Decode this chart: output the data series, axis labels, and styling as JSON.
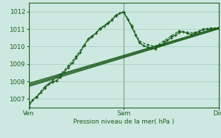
{
  "title": "Pression niveau de la mer( hPa )",
  "background_color": "#cde8e0",
  "grid_color": "#9ec8b8",
  "line_color": "#1a5c1a",
  "ylim": [
    1006.5,
    1012.5
  ],
  "yticks": [
    1007,
    1008,
    1009,
    1010,
    1011,
    1012
  ],
  "xtick_labels": [
    "Ven",
    "Sam",
    "Dim"
  ],
  "xtick_positions": [
    0,
    48,
    96
  ],
  "x_total": 96,
  "series_jagged1": [
    [
      0,
      1006.55
    ],
    [
      2,
      1006.95
    ],
    [
      4,
      1007.1
    ],
    [
      6,
      1007.35
    ],
    [
      8,
      1007.6
    ],
    [
      10,
      1007.85
    ],
    [
      12,
      1007.95
    ],
    [
      14,
      1008.05
    ],
    [
      16,
      1008.25
    ],
    [
      18,
      1008.55
    ],
    [
      20,
      1008.8
    ],
    [
      22,
      1009.05
    ],
    [
      24,
      1009.35
    ],
    [
      26,
      1009.65
    ],
    [
      28,
      1010.05
    ],
    [
      30,
      1010.45
    ],
    [
      32,
      1010.6
    ],
    [
      34,
      1010.75
    ],
    [
      36,
      1011.0
    ],
    [
      38,
      1011.15
    ],
    [
      40,
      1011.3
    ],
    [
      42,
      1011.5
    ],
    [
      44,
      1011.75
    ],
    [
      46,
      1011.9
    ],
    [
      48,
      1011.95
    ],
    [
      50,
      1011.55
    ],
    [
      52,
      1011.1
    ],
    [
      54,
      1010.65
    ],
    [
      56,
      1010.2
    ],
    [
      58,
      1010.05
    ],
    [
      60,
      1009.95
    ],
    [
      62,
      1009.9
    ],
    [
      64,
      1009.85
    ],
    [
      66,
      1010.05
    ],
    [
      68,
      1010.15
    ],
    [
      70,
      1010.35
    ],
    [
      72,
      1010.5
    ],
    [
      74,
      1010.65
    ],
    [
      76,
      1010.8
    ],
    [
      78,
      1010.85
    ],
    [
      80,
      1010.75
    ],
    [
      82,
      1010.7
    ],
    [
      84,
      1010.75
    ],
    [
      86,
      1010.85
    ],
    [
      88,
      1010.95
    ],
    [
      90,
      1011.0
    ],
    [
      92,
      1011.0
    ],
    [
      94,
      1011.05
    ],
    [
      96,
      1011.0
    ]
  ],
  "series_jagged2": [
    [
      0,
      1006.75
    ],
    [
      4,
      1007.15
    ],
    [
      8,
      1007.7
    ],
    [
      12,
      1008.05
    ],
    [
      16,
      1008.4
    ],
    [
      20,
      1008.9
    ],
    [
      24,
      1009.45
    ],
    [
      28,
      1010.1
    ],
    [
      32,
      1010.55
    ],
    [
      36,
      1011.05
    ],
    [
      40,
      1011.35
    ],
    [
      44,
      1011.8
    ],
    [
      48,
      1012.0
    ],
    [
      52,
      1011.2
    ],
    [
      56,
      1010.3
    ],
    [
      60,
      1010.1
    ],
    [
      64,
      1010.0
    ],
    [
      68,
      1010.3
    ],
    [
      72,
      1010.6
    ],
    [
      76,
      1010.9
    ],
    [
      80,
      1010.8
    ],
    [
      84,
      1010.8
    ],
    [
      88,
      1011.0
    ],
    [
      92,
      1011.05
    ],
    [
      96,
      1011.05
    ]
  ],
  "band_lines": [
    [
      [
        0,
        1007.7
      ],
      [
        96,
        1011.0
      ]
    ],
    [
      [
        0,
        1007.75
      ],
      [
        96,
        1011.02
      ]
    ],
    [
      [
        0,
        1007.8
      ],
      [
        96,
        1011.05
      ]
    ],
    [
      [
        0,
        1007.85
      ],
      [
        96,
        1011.08
      ]
    ],
    [
      [
        0,
        1007.9
      ],
      [
        96,
        1011.1
      ]
    ]
  ]
}
